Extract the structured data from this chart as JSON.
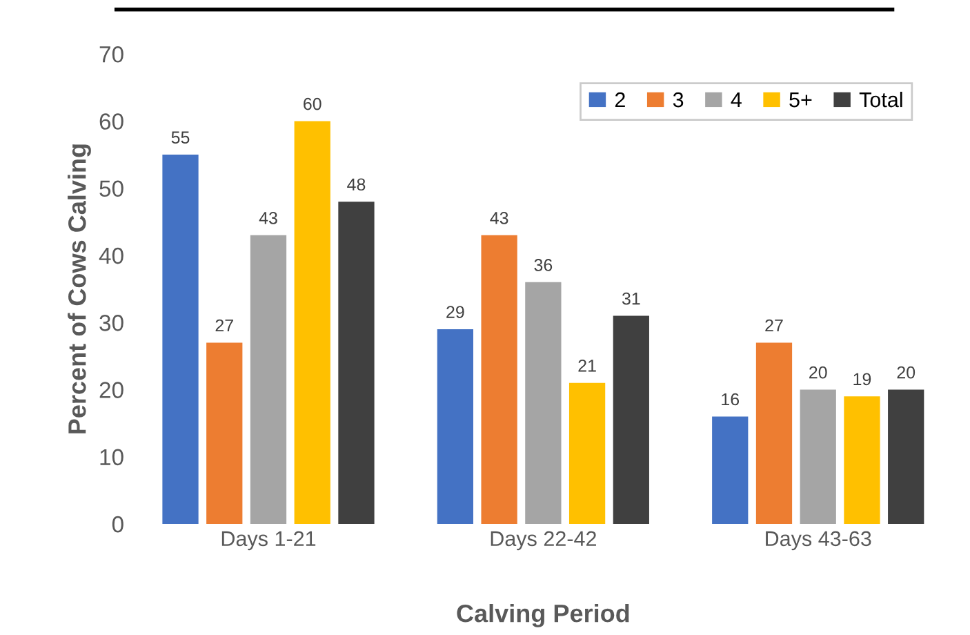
{
  "chart_data": {
    "type": "bar",
    "xlabel": "Calving Period",
    "ylabel": "Percent of Cows Calving",
    "categories": [
      "Days 1-21",
      "Days 22-42",
      "Days 43-63"
    ],
    "series": [
      {
        "name": "2",
        "color": "#4472c4",
        "values": [
          55,
          29,
          16
        ]
      },
      {
        "name": "3",
        "color": "#ed7d31",
        "values": [
          27,
          43,
          27
        ]
      },
      {
        "name": "4",
        "color": "#a5a5a5",
        "values": [
          43,
          36,
          20
        ]
      },
      {
        "name": "5+",
        "color": "#ffc000",
        "values": [
          60,
          21,
          19
        ]
      },
      {
        "name": "Total",
        "color": "#404040",
        "values": [
          48,
          31,
          20
        ]
      }
    ],
    "ylim": [
      0,
      70
    ],
    "yticks": [
      0,
      10,
      20,
      30,
      40,
      50,
      60,
      70
    ],
    "grid": false,
    "legend": "top right",
    "data_labels": true
  }
}
